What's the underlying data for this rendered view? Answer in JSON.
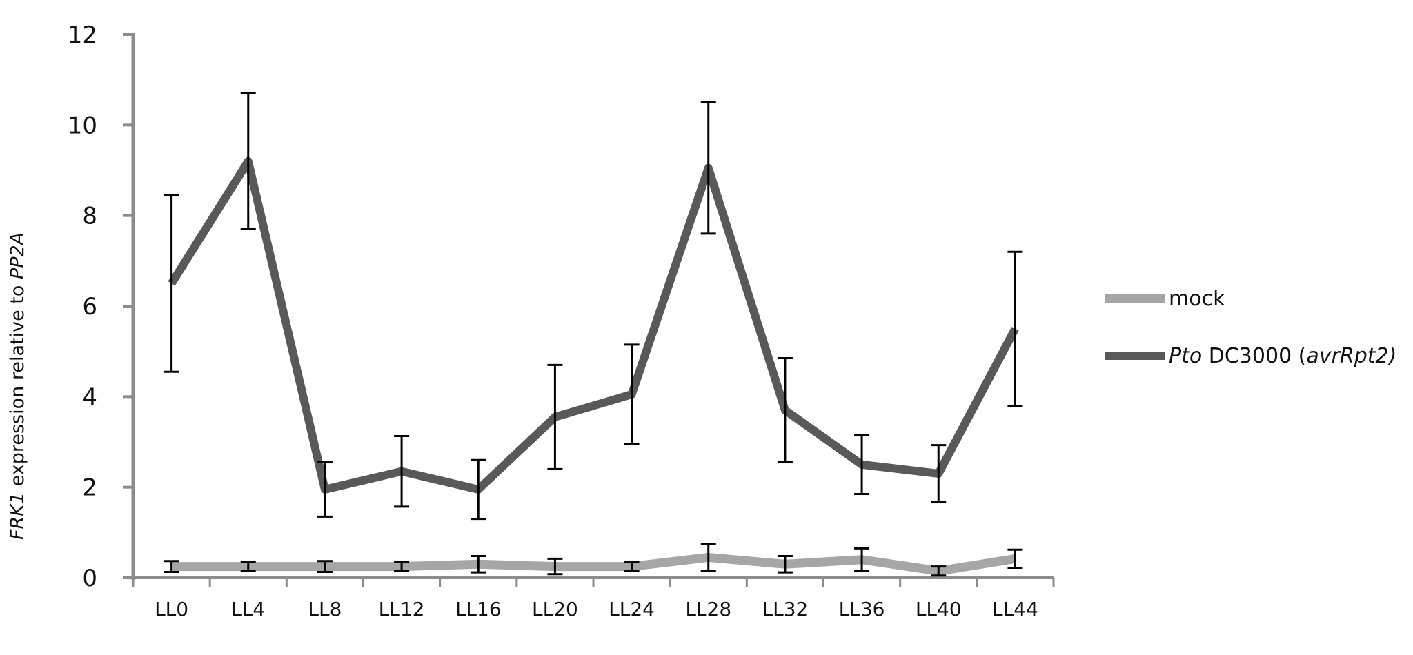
{
  "chart_data": {
    "type": "line",
    "title": "",
    "xlabel": "",
    "ylabel": {
      "italic": "FRK1",
      "mid": " expression relative to ",
      "italic2": "PP2A"
    },
    "categories": [
      "LL0",
      "LL4",
      "LL8",
      "LL12",
      "LL16",
      "LL20",
      "LL24",
      "LL28",
      "LL32",
      "LL36",
      "LL40",
      "LL44"
    ],
    "ylim": [
      0,
      12
    ],
    "yticks": [
      "0",
      "2",
      "4",
      "6",
      "8",
      "10",
      "12"
    ],
    "grid": false,
    "legend_position": "right",
    "series": [
      {
        "name": "mock",
        "color": "#a6a6a6",
        "values": [
          0.25,
          0.25,
          0.25,
          0.25,
          0.3,
          0.25,
          0.25,
          0.45,
          0.3,
          0.4,
          0.15,
          0.42
        ],
        "error": [
          0.12,
          0.1,
          0.12,
          0.1,
          0.18,
          0.17,
          0.1,
          0.3,
          0.18,
          0.25,
          0.1,
          0.2
        ]
      },
      {
        "name_parts": [
          {
            "text": "Pto",
            "italic": true
          },
          {
            "text": " DC3000 (",
            "italic": false
          },
          {
            "text": "avrRpt2)",
            "italic": true
          }
        ],
        "color": "#595959",
        "values": [
          6.5,
          9.2,
          1.95,
          2.35,
          1.95,
          3.55,
          4.05,
          9.05,
          3.7,
          2.5,
          2.3,
          5.5
        ],
        "error": [
          1.95,
          1.5,
          0.6,
          0.78,
          0.65,
          1.15,
          1.1,
          1.45,
          1.15,
          0.65,
          0.63,
          1.7
        ]
      }
    ],
    "error_bar_color": "#000000"
  }
}
